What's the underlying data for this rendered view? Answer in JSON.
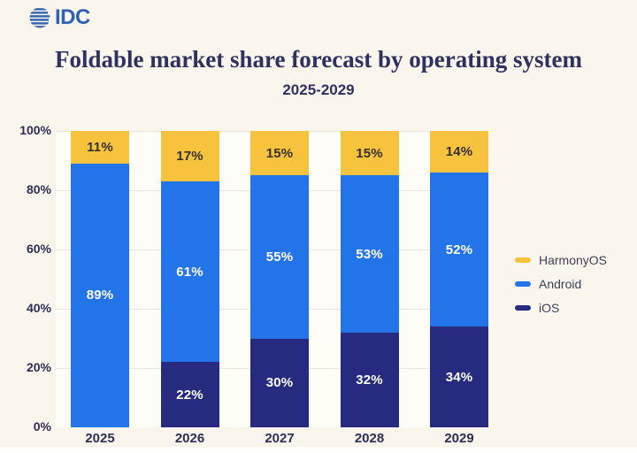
{
  "logo": {
    "text": "IDC",
    "color": "#2D63B2",
    "icon": "striped-globe-icon"
  },
  "header": {
    "title": "Foldable market share forecast by operating system",
    "subtitle": "2025-2029"
  },
  "colors": {
    "background": "#FAF6ED",
    "plot_background": "#FDFCF7",
    "gridline": "#EAE6DE",
    "title_text": "#2F3160",
    "axis_text": "#2C2E55",
    "harmonyos": "#F7C23E",
    "android": "#2373E9",
    "ios": "#262B7F",
    "label_on_yellow": "#35302B",
    "label_on_blue": "#FFFFFF"
  },
  "chart_data": {
    "type": "bar",
    "stacked": true,
    "title": "Foldable market share forecast by operating system",
    "subtitle": "2025-2029",
    "categories": [
      "2025",
      "2026",
      "2027",
      "2028",
      "2029"
    ],
    "series": [
      {
        "name": "iOS",
        "color": "#262B7F",
        "label_color": "#FFFFFF",
        "values": [
          0,
          22,
          30,
          32,
          34
        ]
      },
      {
        "name": "Android",
        "color": "#2373E9",
        "label_color": "#FFFFFF",
        "values": [
          89,
          61,
          55,
          53,
          52
        ]
      },
      {
        "name": "HarmonyOS",
        "color": "#F7C23E",
        "label_color": "#35302B",
        "values": [
          11,
          17,
          15,
          15,
          14
        ]
      }
    ],
    "y_ticks": [
      "0%",
      "20%",
      "40%",
      "60%",
      "80%",
      "100%"
    ],
    "ylim": [
      0,
      100
    ],
    "grid": true,
    "legend": [
      {
        "label": "HarmonyOS",
        "color": "#F7C23E"
      },
      {
        "label": "Android",
        "color": "#2373E9"
      },
      {
        "label": "iOS",
        "color": "#262B7F"
      }
    ],
    "legend_position": "right",
    "value_suffix": "%"
  }
}
